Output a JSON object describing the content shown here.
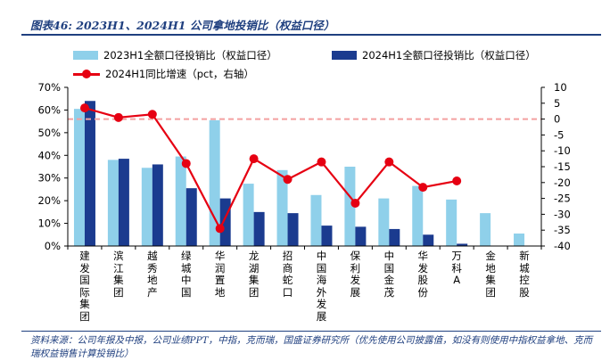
{
  "title": "图表46:  2023H1、2024H1 公司拿地投销比（权益口径）",
  "legend": {
    "s2023": "2023H1全额口径投销比（权益口径）",
    "s2024": "2024H1全额口径投销比（权益口径）",
    "line": "2024H1同比增速（pct，右轴）"
  },
  "colors": {
    "s2023": "#8fd0ea",
    "s2024": "#1b3b8f",
    "line": "#e60012",
    "zero": "#f4a0a0"
  },
  "source": "资料来源：公司年报及中报，公司业绩PPT，中指，克而瑞，国盛证券研究所（优先使用公司披露值，如没有则使用中指权益拿地、克而瑞权益销售计算投销比）",
  "chart_data": {
    "type": "bar",
    "categories": [
      "建发国际集团",
      "滨江集团",
      "越秀地产",
      "绿城中国",
      "华润置地",
      "龙湖集团",
      "招商蛇口",
      "中国海外发展",
      "保利发展",
      "中国金茂",
      "华发股份",
      "万科A",
      "金地集团",
      "新城控股"
    ],
    "series": [
      {
        "name": "2023H1全额口径投销比（权益口径）",
        "axis": "left",
        "values": [
          60.5,
          38.0,
          34.5,
          39.5,
          55.5,
          27.5,
          33.5,
          22.5,
          35.0,
          21.0,
          26.5,
          20.5,
          14.5,
          5.5
        ]
      },
      {
        "name": "2024H1全额口径投销比（权益口径）",
        "axis": "left",
        "values": [
          64.0,
          38.5,
          36.0,
          25.5,
          21.0,
          15.0,
          14.5,
          9.0,
          8.5,
          7.5,
          5.0,
          1.0,
          null,
          null
        ]
      },
      {
        "name": "2024H1同比增速（pct，右轴）",
        "axis": "right",
        "type": "line",
        "values": [
          3.5,
          0.5,
          1.5,
          -14.0,
          -34.5,
          -12.5,
          -19.0,
          -13.5,
          -26.5,
          -13.5,
          -21.5,
          -19.5,
          null,
          null
        ]
      }
    ],
    "ylim": [
      0,
      70
    ],
    "yticks": [
      "0%",
      "10%",
      "20%",
      "30%",
      "40%",
      "50%",
      "60%",
      "70%"
    ],
    "y2lim": [
      -40,
      10
    ],
    "y2ticks": [
      "10",
      "5",
      "0",
      "-5",
      "-10",
      "-15",
      "-20",
      "-25",
      "-30",
      "-35",
      "-40"
    ],
    "reference_line_right": 0,
    "grid": false,
    "legend_position": "top"
  }
}
